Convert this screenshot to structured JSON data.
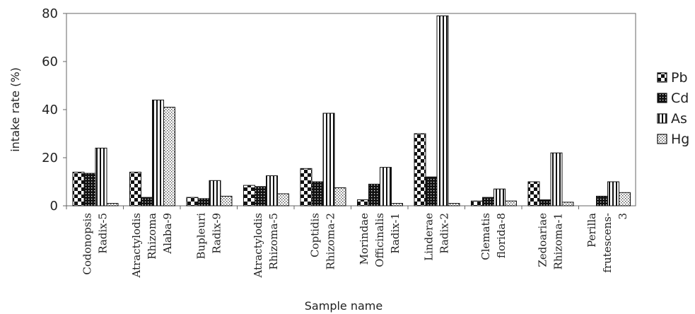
{
  "chart_data": {
    "type": "bar",
    "title": "",
    "xlabel": "Sample name",
    "ylabel": "intake rate (%)",
    "ylim": [
      0,
      80
    ],
    "yticks": [
      0,
      20,
      40,
      60,
      80
    ],
    "grid": false,
    "legend_position": "right",
    "categories": [
      [
        "Codonopsis",
        "Radix-5"
      ],
      [
        "Atractylodis",
        "Rhizoma",
        "Alaba-9"
      ],
      [
        "Bupleuri",
        "Radix-9"
      ],
      [
        "Atractylodis",
        "Rhizoma-5"
      ],
      [
        "Coptidis",
        "Rhizoma-2"
      ],
      [
        "Morindae",
        "Officinalis",
        "Radix-1"
      ],
      [
        "Linderae",
        "Radix-2"
      ],
      [
        "Clematis",
        "florida-8"
      ],
      [
        "Zedoariae",
        "Rhizoma-1"
      ],
      [
        "Perilla",
        "frutescens-",
        "3"
      ]
    ],
    "series": [
      {
        "name": "Pb",
        "pattern": "checker",
        "values": [
          14,
          14,
          3.5,
          8.5,
          15.5,
          2.5,
          30,
          2,
          10,
          0
        ]
      },
      {
        "name": "Cd",
        "pattern": "dots",
        "values": [
          13.5,
          3.5,
          3,
          8,
          10,
          9,
          12,
          3.5,
          2.5,
          4
        ]
      },
      {
        "name": "As",
        "pattern": "vstripes",
        "values": [
          24,
          44,
          10.5,
          12.5,
          38.5,
          16,
          79,
          7,
          22,
          10
        ]
      },
      {
        "name": "Hg",
        "pattern": "fine",
        "values": [
          1,
          41,
          4,
          5,
          7.5,
          1,
          1,
          2,
          1.5,
          5.5
        ]
      }
    ]
  }
}
